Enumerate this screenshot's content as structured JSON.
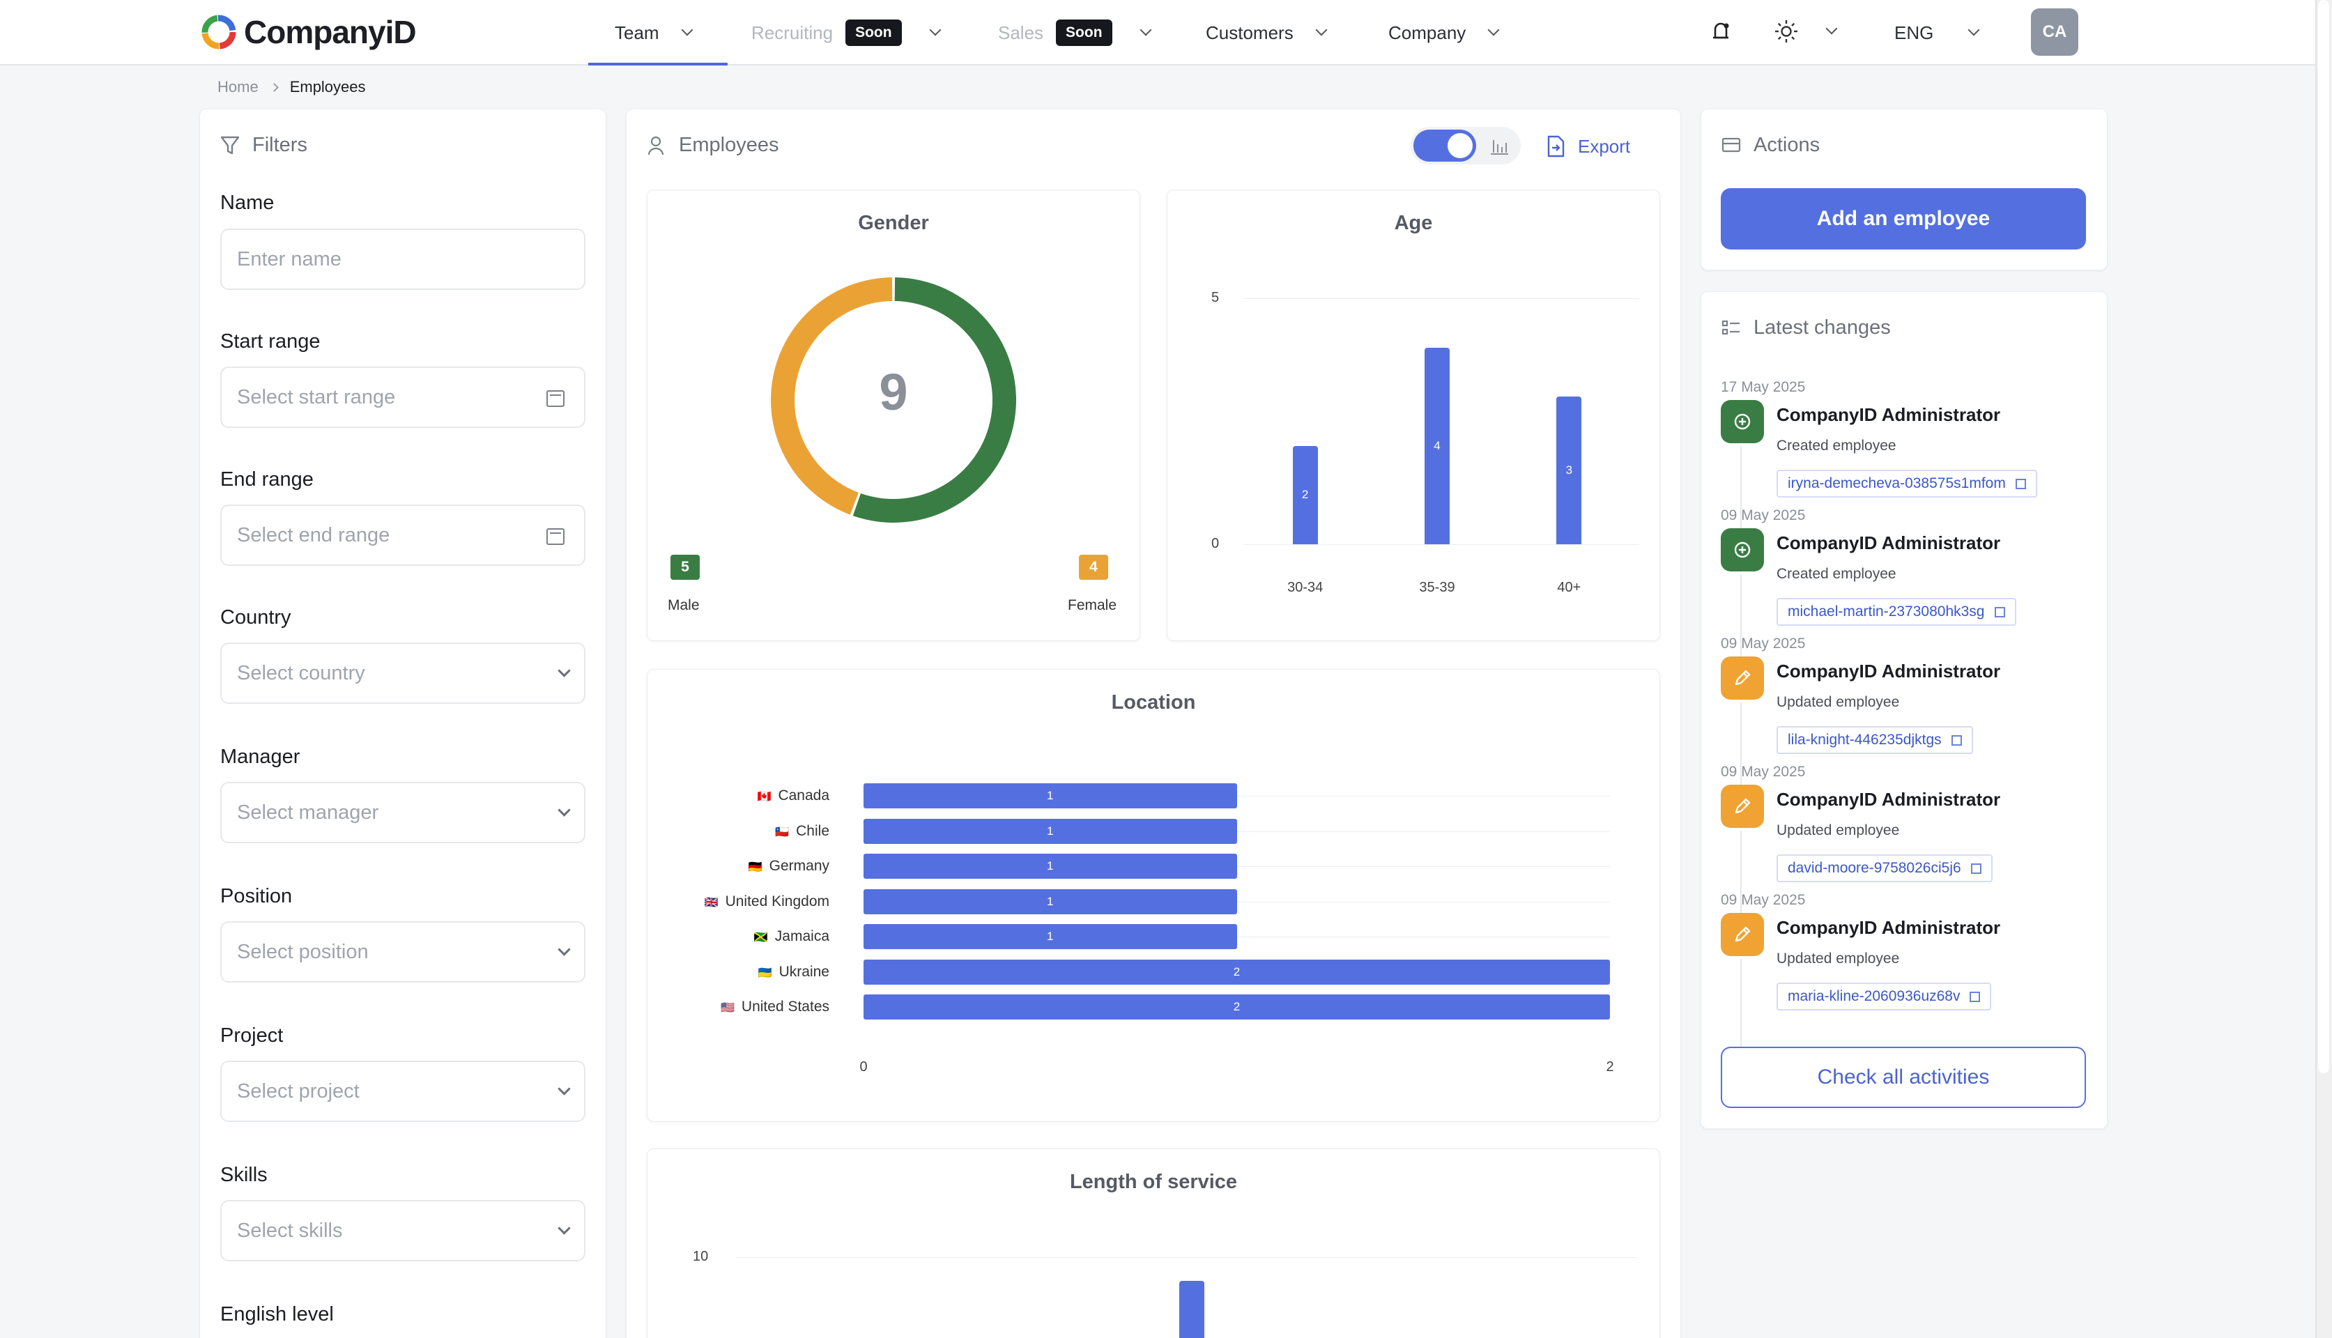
{
  "header": {
    "logo_text": "CompanyiD",
    "nav": [
      {
        "label": "Team",
        "soon": ""
      },
      {
        "label": "Recruiting",
        "soon": "Soon"
      },
      {
        "label": "Sales",
        "soon": "Soon"
      },
      {
        "label": "Customers",
        "soon": ""
      },
      {
        "label": "Company",
        "soon": ""
      }
    ],
    "language": "ENG",
    "avatar_initials": "CA"
  },
  "breadcrumb": {
    "home": "Home",
    "current": "Employees"
  },
  "filters": {
    "title": "Filters",
    "name_label": "Name",
    "name_placeholder": "Enter name",
    "start_label": "Start range",
    "start_placeholder": "Select start range",
    "end_label": "End range",
    "end_placeholder": "Select end range",
    "country_label": "Country",
    "country_placeholder": "Select country",
    "manager_label": "Manager",
    "manager_placeholder": "Select manager",
    "position_label": "Position",
    "position_placeholder": "Select position",
    "project_label": "Project",
    "project_placeholder": "Select project",
    "skills_label": "Skills",
    "skills_placeholder": "Select skills",
    "english_label": "English level"
  },
  "employees": {
    "title": "Employees",
    "export_label": "Export",
    "view_toggle_on": true
  },
  "chart_data": [
    {
      "type": "pie",
      "title": "Gender",
      "center_label": "9",
      "categories": [
        "Male",
        "Female"
      ],
      "values": [
        5,
        4
      ],
      "colors": [
        "#3a7d44",
        "#eba234"
      ]
    },
    {
      "type": "bar",
      "title": "Age",
      "categories": [
        "30-34",
        "35-39",
        "40+"
      ],
      "values": [
        2,
        4,
        3
      ],
      "y_ticks": [
        "0",
        "5"
      ],
      "ylim": [
        0,
        5
      ],
      "color": "#5470e0"
    },
    {
      "type": "bar",
      "orientation": "horizontal",
      "title": "Location",
      "categories": [
        "Canada",
        "Chile",
        "Germany",
        "United Kingdom",
        "Jamaica",
        "Ukraine",
        "United States"
      ],
      "flags": [
        "🇨🇦",
        "🇨🇱",
        "🇩🇪",
        "🇬🇧",
        "🇯🇲",
        "🇺🇦",
        "🇺🇸"
      ],
      "values": [
        1,
        1,
        1,
        1,
        1,
        2,
        2
      ],
      "x_ticks": [
        "0",
        "2"
      ],
      "xlim": [
        0,
        2
      ],
      "color": "#5470e0"
    },
    {
      "type": "bar",
      "title": "Length of service",
      "y_ticks": [
        "10"
      ],
      "color": "#5470e0"
    }
  ],
  "actions": {
    "title": "Actions",
    "add_label": "Add an employee"
  },
  "latest": {
    "title": "Latest changes",
    "check_all_label": "Check all activities",
    "items": [
      {
        "date": "17 May 2025",
        "who": "CompanyID Administrator",
        "what": "Created employee",
        "link": "iryna-demecheva-038575s1mfom",
        "kind": "created"
      },
      {
        "date": "09 May 2025",
        "who": "CompanyID Administrator",
        "what": "Created employee",
        "link": "michael-martin-2373080hk3sg",
        "kind": "created"
      },
      {
        "date": "09 May 2025",
        "who": "CompanyID Administrator",
        "what": "Updated employee",
        "link": "lila-knight-446235djktgs",
        "kind": "updated"
      },
      {
        "date": "09 May 2025",
        "who": "CompanyID Administrator",
        "what": "Updated employee",
        "link": "david-moore-9758026ci5j6",
        "kind": "updated"
      },
      {
        "date": "09 May 2025",
        "who": "CompanyID Administrator",
        "what": "Updated employee",
        "link": "maria-kline-2060936uz68v",
        "kind": "updated"
      }
    ]
  }
}
